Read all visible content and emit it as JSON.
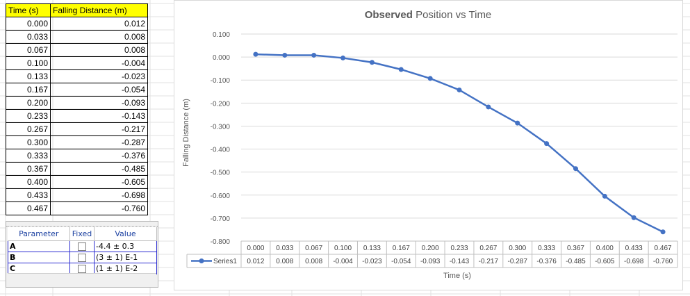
{
  "table": {
    "headers": [
      "Time (s)",
      "Falling Distance (m)"
    ],
    "rows": [
      [
        "0.000",
        "0.012"
      ],
      [
        "0.033",
        "0.008"
      ],
      [
        "0.067",
        "0.008"
      ],
      [
        "0.100",
        "-0.004"
      ],
      [
        "0.133",
        "-0.023"
      ],
      [
        "0.167",
        "-0.054"
      ],
      [
        "0.200",
        "-0.093"
      ],
      [
        "0.233",
        "-0.143"
      ],
      [
        "0.267",
        "-0.217"
      ],
      [
        "0.300",
        "-0.287"
      ],
      [
        "0.333",
        "-0.376"
      ],
      [
        "0.367",
        "-0.485"
      ],
      [
        "0.400",
        "-0.605"
      ],
      [
        "0.433",
        "-0.698"
      ],
      [
        "0.467",
        "-0.760"
      ]
    ]
  },
  "params": {
    "headers": {
      "parameter": "Parameter",
      "fixed": "Fixed",
      "value": "Value"
    },
    "rows": [
      {
        "name": "A",
        "value": "-4.4 ± 0.3"
      },
      {
        "name": "B",
        "value": "(3 ± 1) E-1"
      },
      {
        "name": "C",
        "value": "(1 ± 1) E-2"
      }
    ]
  },
  "chart_data": {
    "type": "line",
    "title_bold": "Observed",
    "title_rest": " Position vs Time",
    "xlabel": "Time (s)",
    "ylabel": "Falling Distance (m)",
    "ylim": [
      -0.8,
      0.1
    ],
    "yticks": [
      "0.100",
      "0.000",
      "-0.100",
      "-0.200",
      "-0.300",
      "-0.400",
      "-0.500",
      "-0.600",
      "-0.700",
      "-0.800"
    ],
    "categories": [
      "0.000",
      "0.033",
      "0.067",
      "0.100",
      "0.133",
      "0.167",
      "0.200",
      "0.233",
      "0.267",
      "0.300",
      "0.333",
      "0.367",
      "0.400",
      "0.433",
      "0.467"
    ],
    "series": [
      {
        "name": "Series1",
        "values": [
          0.012,
          0.008,
          0.008,
          -0.004,
          -0.023,
          -0.054,
          -0.093,
          -0.143,
          -0.217,
          -0.287,
          -0.376,
          -0.485,
          -0.605,
          -0.698,
          -0.76
        ],
        "labels": [
          "0.012",
          "0.008",
          "0.008",
          "-0.004",
          "-0.023",
          "-0.054",
          "-0.093",
          "-0.143",
          "-0.217",
          "-0.287",
          "-0.376",
          "-0.485",
          "-0.605",
          "-0.698",
          "-0.760"
        ]
      }
    ],
    "legend": "data-table",
    "grid": true,
    "color": "#4472c4"
  }
}
